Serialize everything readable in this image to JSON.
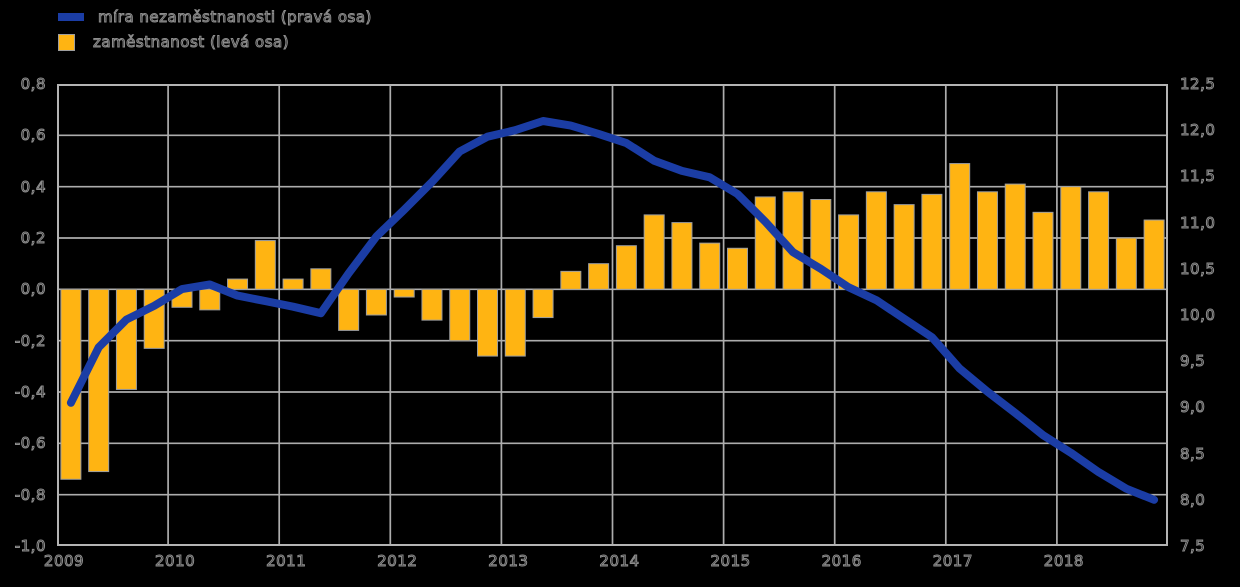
{
  "legend": {
    "items": [
      {
        "label": "míra nezaměstnanosti (pravá osa)",
        "type": "line",
        "color": "#1B3DA5"
      },
      {
        "label": "zaměstnanost (levá osa)",
        "type": "bar",
        "color": "#FFB412"
      }
    ]
  },
  "colors": {
    "background": "#000000",
    "grid": "#ADADAD",
    "frame": "#B4B4B4",
    "bar_fill": "#FFB412",
    "bar_stroke": "#9E9E9E",
    "line": "#1B3DA5",
    "text_outline": "#8E8E8E"
  },
  "chart_data": {
    "type": "combo",
    "title": "",
    "xlabel": "",
    "ylabel_left": "",
    "ylabel_right": "",
    "grid": true,
    "legend_position": "top-left",
    "categories": [
      "2009 Q1",
      "2009 Q2",
      "2009 Q3",
      "2009 Q4",
      "2010 Q1",
      "2010 Q2",
      "2010 Q3",
      "2010 Q4",
      "2011 Q1",
      "2011 Q2",
      "2011 Q3",
      "2011 Q4",
      "2012 Q1",
      "2012 Q2",
      "2012 Q3",
      "2012 Q4",
      "2013 Q1",
      "2013 Q2",
      "2013 Q3",
      "2013 Q4",
      "2014 Q1",
      "2014 Q2",
      "2014 Q3",
      "2014 Q4",
      "2015 Q1",
      "2015 Q2",
      "2015 Q3",
      "2015 Q4",
      "2016 Q1",
      "2016 Q2",
      "2016 Q3",
      "2016 Q4",
      "2017 Q1",
      "2017 Q2",
      "2017 Q3",
      "2017 Q4",
      "2018 Q1",
      "2018 Q2",
      "2018 Q3",
      "2018 Q4"
    ],
    "series": [
      {
        "name": "zaměstnanost (levá osa)",
        "chart_type": "bar",
        "axis": "left",
        "color": "#FFB412",
        "values": [
          -0.74,
          -0.71,
          -0.39,
          -0.23,
          -0.07,
          -0.08,
          0.04,
          0.19,
          0.04,
          0.08,
          -0.16,
          -0.1,
          -0.03,
          -0.12,
          -0.2,
          -0.26,
          -0.26,
          -0.11,
          0.07,
          0.1,
          0.17,
          0.29,
          0.26,
          0.18,
          0.16,
          0.36,
          0.38,
          0.35,
          0.29,
          0.38,
          0.33,
          0.37,
          0.49,
          0.38,
          0.41,
          0.3,
          0.4,
          0.38,
          0.2,
          0.27
        ]
      },
      {
        "name": "míra nezaměstnanosti (pravá osa)",
        "chart_type": "line",
        "axis": "right",
        "color": "#1B3DA5",
        "values": [
          9.05,
          9.65,
          9.95,
          10.1,
          10.28,
          10.33,
          10.21,
          10.15,
          10.09,
          10.02,
          10.45,
          10.85,
          11.14,
          11.44,
          11.77,
          11.93,
          12.0,
          12.1,
          12.05,
          11.96,
          11.86,
          11.67,
          11.56,
          11.49,
          11.31,
          11.01,
          10.68,
          10.5,
          10.3,
          10.16,
          9.96,
          9.76,
          9.42,
          9.17,
          8.94,
          8.7,
          8.51,
          8.3,
          8.12,
          8.0
        ]
      }
    ],
    "left_axis": {
      "min": -1.0,
      "max": 0.8,
      "step": 0.2,
      "tick_labels": [
        "0,8",
        "0,6",
        "0,4",
        "0,2",
        "0,0",
        "-0,2",
        "-0,4",
        "-0,6",
        "-0,8",
        "-1,0"
      ]
    },
    "right_axis": {
      "min": 7.5,
      "max": 12.5,
      "step": 0.5,
      "tick_labels": [
        "12,5",
        "12,0",
        "11,5",
        "11,0",
        "10,5",
        "10,0",
        "9,5",
        "9,0",
        "8,5",
        "8,0",
        "7,5"
      ]
    },
    "x_axis": {
      "tick_labels": [
        "2009",
        "2010",
        "2011",
        "2012",
        "2013",
        "2014",
        "2015",
        "2016",
        "2017",
        "2018"
      ]
    }
  }
}
